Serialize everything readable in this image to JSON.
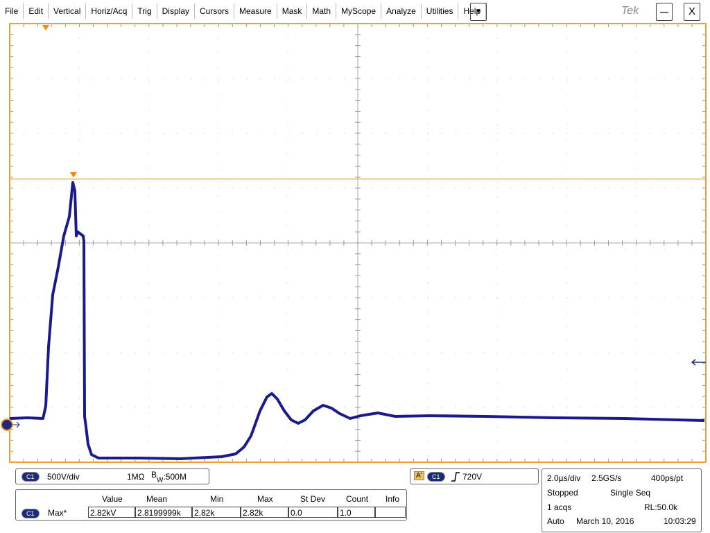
{
  "menu": [
    "File",
    "Edit",
    "Vertical",
    "Horiz/Acq",
    "Trig",
    "Display",
    "Cursors",
    "Measure",
    "Mask",
    "Math",
    "MyScope",
    "Analyze",
    "Utilities",
    "Help"
  ],
  "menu_more": "▼",
  "brand": "Tek",
  "minimize": "—",
  "close": "X",
  "channel": {
    "badge": "C1",
    "scale": "500V/div",
    "coupling": "1MΩ",
    "bw_label": "B",
    "bw_sub": "W",
    "bw_value": ":500M"
  },
  "trigger": {
    "mode": "A'",
    "badge": "C1",
    "level": "720V"
  },
  "measurements": {
    "headers": [
      "Value",
      "Mean",
      "Min",
      "Max",
      "St Dev",
      "Count",
      "Info"
    ],
    "row": {
      "badge": "C1",
      "name": "Max*",
      "cells": [
        "2.82kV",
        "2.8199999k",
        "2.82k",
        "2.82k",
        "0.0",
        "1.0"
      ]
    }
  },
  "horizontal": {
    "scale": "2.0µs/div",
    "rate": "2.5GS/s",
    "resolution": "400ps/pt",
    "state": "Stopped",
    "acq_mode": "Single Seq",
    "acqs": "1 acqs",
    "record": "RL:50.0k",
    "trig_mode": "Auto",
    "date": "March 10, 2016",
    "time": "10:03:29"
  }
}
